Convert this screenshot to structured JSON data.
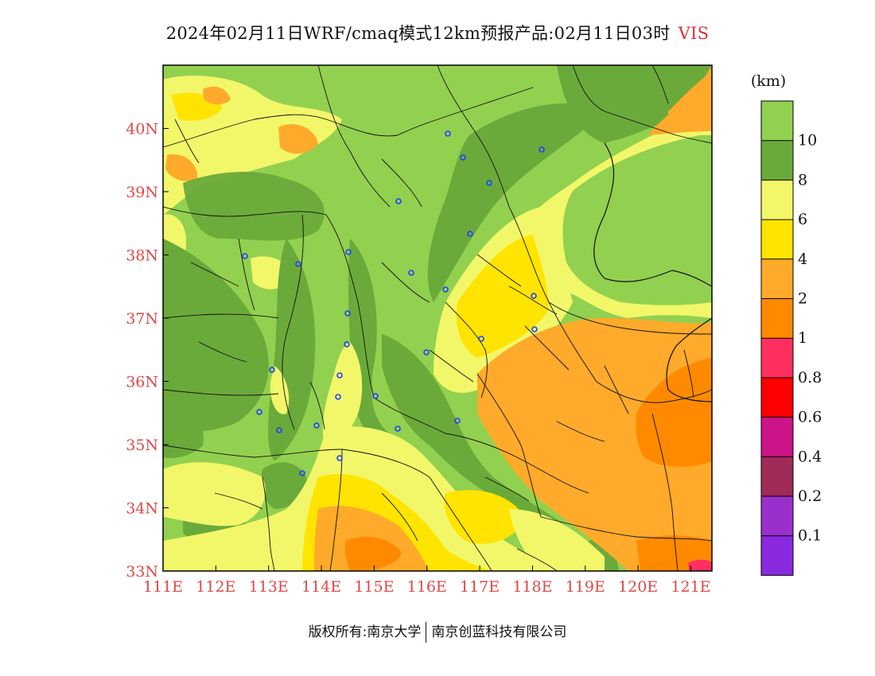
{
  "title": {
    "text": "2024年02月11日WRF/cmaq模式12km预报产品:02月11日03时",
    "variable": "VIS"
  },
  "chart_data": {
    "type": "heatmap",
    "variable": "VIS",
    "unit_label": "(km)",
    "x_ticks": [
      "111E",
      "112E",
      "113E",
      "114E",
      "115E",
      "116E",
      "117E",
      "118E",
      "119E",
      "120E",
      "121E"
    ],
    "y_ticks": [
      "33N",
      "34N",
      "35N",
      "36N",
      "37N",
      "38N",
      "39N",
      "40N"
    ],
    "lon_range": [
      111,
      121.4
    ],
    "lat_range": [
      33,
      41
    ],
    "colorbar": {
      "levels": [
        "10",
        "8",
        "6",
        "4",
        "2",
        "1",
        "0.8",
        "0.6",
        "0.4",
        "0.2",
        "0.1"
      ],
      "colors": [
        "#92d050",
        "#6aaa3a",
        "#f2f76a",
        "#ffe400",
        "#ffaa2a",
        "#ff8a00",
        "#ff3060",
        "#ff0000",
        "#cc1488",
        "#a02a58",
        "#9a30cc",
        "#8a2ae0"
      ]
    }
  },
  "colors": {
    "vis_gt10": "#92d050",
    "vis_8_10": "#6aaa3a",
    "vis_6_8": "#f2f76a",
    "vis_4_6": "#ffe400",
    "vis_2_4": "#ffaa2a",
    "vis_1_2": "#ff8a00",
    "axis_label": "#e04848",
    "station": "#2040ff"
  },
  "footer": {
    "left": "版权所有:南京大学",
    "right": "南京创蓝科技有限公司"
  }
}
